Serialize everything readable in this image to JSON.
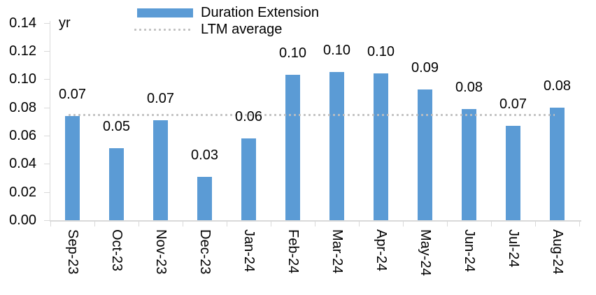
{
  "chart_data": {
    "type": "bar",
    "title": "",
    "ylabel": "yr",
    "categories": [
      "Sep-23",
      "Oct-23",
      "Nov-23",
      "Dec-23",
      "Jan-24",
      "Feb-24",
      "Mar-24",
      "Apr-24",
      "May-24",
      "Jun-24",
      "Jul-24",
      "Aug-24"
    ],
    "series": [
      {
        "name": "Duration Extension",
        "type": "bar",
        "color": "#5B9BD5",
        "values": [
          0.074,
          0.051,
          0.071,
          0.031,
          0.058,
          0.103,
          0.105,
          0.104,
          0.093,
          0.079,
          0.067,
          0.08
        ],
        "data_labels": [
          "0.07",
          "0.05",
          "0.07",
          "0.03",
          "0.06",
          "0.10",
          "0.10",
          "0.10",
          "0.09",
          "0.08",
          "0.07",
          "0.08"
        ]
      },
      {
        "name": "LTM average",
        "type": "line",
        "line_style": "dotted",
        "color": "#BFBFBF",
        "value": 0.075
      }
    ],
    "ylim": [
      0,
      0.14
    ],
    "ytick_step": 0.02,
    "ytick_labels": [
      "0.00",
      "0.02",
      "0.04",
      "0.06",
      "0.08",
      "0.10",
      "0.12",
      "0.14"
    ],
    "grid": false,
    "legend_position": "top-center"
  },
  "colors": {
    "axis": "#D9D9D9",
    "text": "#000000"
  }
}
